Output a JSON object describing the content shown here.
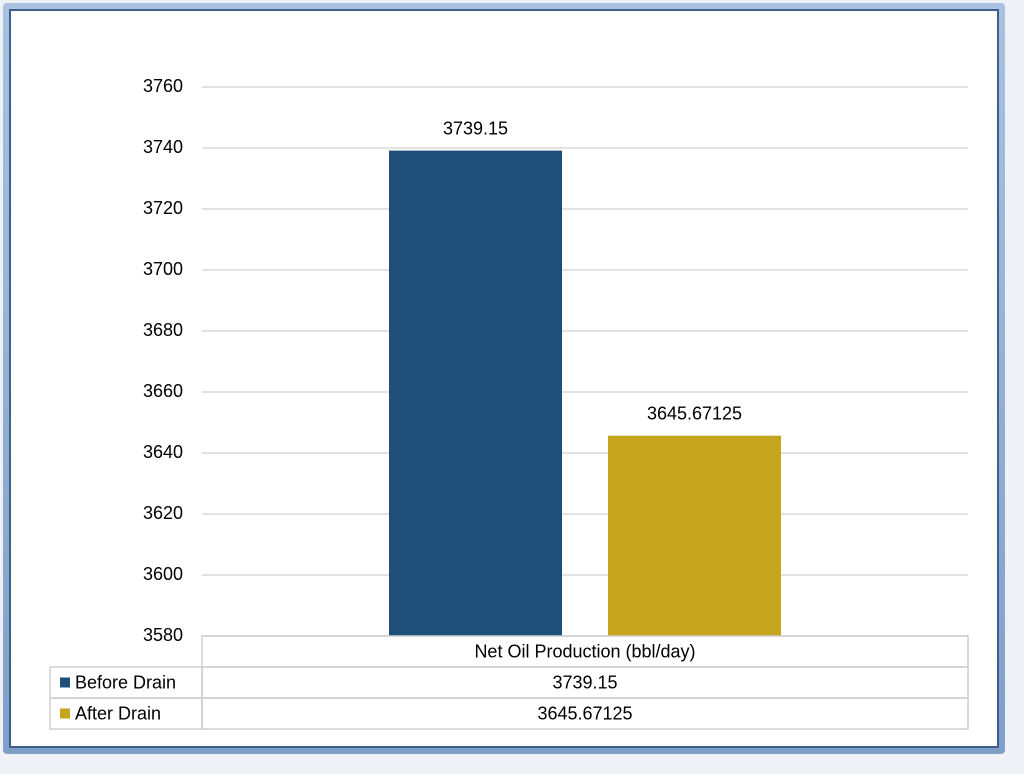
{
  "chart_data": {
    "type": "bar",
    "categories": [
      "Net Oil Production (bbl/day)"
    ],
    "series": [
      {
        "name": "Before Drain",
        "color": "#1f4e79",
        "values": [
          3739.15
        ]
      },
      {
        "name": "After Drain",
        "color": "#c5a51e",
        "values": [
          3645.67125
        ]
      }
    ],
    "ylim": [
      3580,
      3760
    ],
    "yticks": [
      3580,
      3600,
      3620,
      3640,
      3660,
      3680,
      3700,
      3720,
      3740,
      3760
    ],
    "grid": true,
    "data_labels": true,
    "data_table": true
  }
}
